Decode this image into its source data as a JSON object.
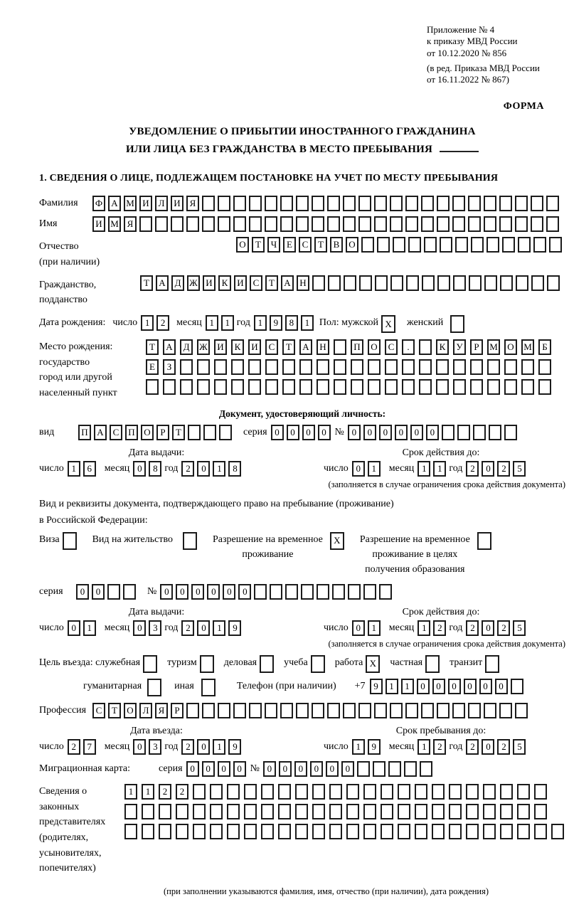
{
  "meta": {
    "appendix_lines": [
      "Приложение № 4",
      "к приказу МВД России",
      "от 10.12.2020 № 856"
    ],
    "amendment_lines": [
      "(в ред. Приказа МВД России",
      "от 16.11.2022 № 867)"
    ],
    "form_label": "ФОРМА"
  },
  "title": {
    "line1": "УВЕДОМЛЕНИЕ О ПРИБЫТИИ ИНОСТРАННОГО ГРАЖДАНИНА",
    "line2": "ИЛИ ЛИЦА БЕЗ ГРАЖДАНСТВА В МЕСТО ПРЕБЫВАНИЯ"
  },
  "section1": {
    "heading": "1. СВЕДЕНИЯ О ЛИЦЕ, ПОДЛЕЖАЩЕМ ПОСТАНОВКЕ НА УЧЕТ ПО МЕСТУ ПРЕБЫВАНИЯ"
  },
  "date_labels": {
    "day": "число",
    "month": "месяц",
    "year": "год"
  },
  "surname": {
    "label": "Фамилия",
    "cells": {
      "value": "ФАМИЛИЯ",
      "len": 30
    }
  },
  "given_name": {
    "label": "Имя",
    "cells": {
      "value": "ИМЯ",
      "len": 30
    }
  },
  "patronymic": {
    "label": "Отчество",
    "label2": "(при наличии)",
    "cells": {
      "value": "ОТЧЕСТВО",
      "len": 21
    }
  },
  "citizenship": {
    "label": "Гражданство,",
    "label2": "подданство",
    "cells": {
      "value": "ТАДЖИКИСТАН",
      "len": 27
    }
  },
  "birth_date": {
    "label": "Дата рождения:",
    "day": {
      "value": "12",
      "len": 2
    },
    "month": {
      "value": "11",
      "len": 2
    },
    "year": {
      "value": "1981",
      "len": 4
    }
  },
  "sex": {
    "label": "Пол: мужской",
    "male_box": {
      "value": "X",
      "len": 1
    },
    "female_label": "женский",
    "female_box": {
      "value": "",
      "len": 1
    }
  },
  "birth_place": {
    "label_lines": [
      "Место рождения:",
      "государство",
      "город или другой",
      "населенный пункт"
    ],
    "row1": {
      "value": "ТАДЖИКИСТАН ПОС. КУРМОМБ",
      "len": 24
    },
    "row2": {
      "value": "ЕЗ",
      "len": 24
    },
    "row3": {
      "value": "",
      "len": 24
    }
  },
  "identity_doc": {
    "heading": "Документ, удостоверяющий личность:",
    "type_label": "вид",
    "type": {
      "value": "ПАСПОРТ",
      "len": 10
    },
    "series_label": "серия",
    "series": {
      "value": "0000",
      "len": 4
    },
    "number_label": "№",
    "number": {
      "value": "000000",
      "len": 11
    },
    "issue": {
      "heading": "Дата выдачи:",
      "day": {
        "value": "16",
        "len": 2
      },
      "month": {
        "value": "08",
        "len": 2
      },
      "year": {
        "value": "2018",
        "len": 4
      }
    },
    "valid": {
      "heading": "Срок действия до:",
      "day": {
        "value": "01",
        "len": 2
      },
      "month": {
        "value": "11",
        "len": 2
      },
      "year": {
        "value": "2025",
        "len": 4
      }
    },
    "note": "(заполняется в случае ограничения срока действия документа)"
  },
  "residence_doc": {
    "intro1": "Вид и реквизиты документа, подтверждающего право на пребывание (проживание)",
    "intro2": "в Российской Федерации:",
    "visa_label": "Виза",
    "visa_box": {
      "value": "",
      "len": 1
    },
    "residence_permit_label": "Вид на жительство",
    "residence_permit_box": {
      "value": "",
      "len": 1
    },
    "temp_residence_line1": "Разрешение на временное",
    "temp_residence_line2": "проживание",
    "temp_residence_box": {
      "value": "X",
      "len": 1
    },
    "temp_residence_edu_line1": "Разрешение на временное",
    "temp_residence_edu_line2": "проживание в целях",
    "temp_residence_edu_line3": "получения образования",
    "temp_residence_edu_box": {
      "value": "",
      "len": 1
    },
    "series_label": "серия",
    "series": {
      "value": "00",
      "len": 4
    },
    "number_label": "№",
    "number": {
      "value": "000000",
      "len": 15
    },
    "issue": {
      "heading": "Дата выдачи:",
      "day": {
        "value": "01",
        "len": 2
      },
      "month": {
        "value": "03",
        "len": 2
      },
      "year": {
        "value": "2019",
        "len": 4
      }
    },
    "valid": {
      "heading": "Срок действия до:",
      "day": {
        "value": "01",
        "len": 2
      },
      "month": {
        "value": "12",
        "len": 2
      },
      "year": {
        "value": "2025",
        "len": 4
      }
    },
    "note": "(заполняется в случае ограничения срока действия документа)"
  },
  "visit_purpose": {
    "label": "Цель въезда: служебная",
    "official_box": {
      "value": "",
      "len": 1
    },
    "tourism_label": "туризм",
    "tourism_box": {
      "value": "",
      "len": 1
    },
    "business_label": "деловая",
    "business_box": {
      "value": "",
      "len": 1
    },
    "study_label": "учеба",
    "study_box": {
      "value": "",
      "len": 1
    },
    "work_label": "работа",
    "work_box": {
      "value": "X",
      "len": 1
    },
    "private_label": "частная",
    "private_box": {
      "value": "",
      "len": 1
    },
    "transit_label": "транзит",
    "transit_box": {
      "value": "",
      "len": 1
    },
    "humanitarian_label": "гуманитарная",
    "humanitarian_box": {
      "value": "",
      "len": 1
    },
    "other_label": "иная",
    "other_box": {
      "value": "",
      "len": 1
    }
  },
  "phone": {
    "label": "Телефон (при наличии)",
    "prefix": "+7",
    "cells": {
      "value": "911000000",
      "len": 10
    }
  },
  "profession": {
    "label": "Профессия",
    "cells": {
      "value": "СТОЛЯР",
      "len": 28
    }
  },
  "entry": {
    "issue": {
      "heading": "Дата въезда:",
      "day": {
        "value": "27",
        "len": 2
      },
      "month": {
        "value": "03",
        "len": 2
      },
      "year": {
        "value": "2019",
        "len": 4
      }
    },
    "valid": {
      "heading": "Срок пребывания до:",
      "day": {
        "value": "19",
        "len": 2
      },
      "month": {
        "value": "12",
        "len": 2
      },
      "year": {
        "value": "2025",
        "len": 4
      }
    }
  },
  "migration_card": {
    "label": "Миграционная карта:",
    "series_label": "серия",
    "series": {
      "value": "0000",
      "len": 4
    },
    "number_label": "№",
    "number": {
      "value": "000000",
      "len": 11
    }
  },
  "legal_reps": {
    "label_lines": [
      "Сведения о",
      "законных",
      "представителях",
      "(родителях,",
      "усыновителях,",
      "попечителях)"
    ],
    "row1": {
      "value": "1122",
      "len": 25
    },
    "row2": {
      "value": "",
      "len": 25
    },
    "row3": {
      "value": "",
      "len": 26
    },
    "note": "(при заполнении указываются фамилия, имя, отчество (при наличии), дата рождения)"
  }
}
